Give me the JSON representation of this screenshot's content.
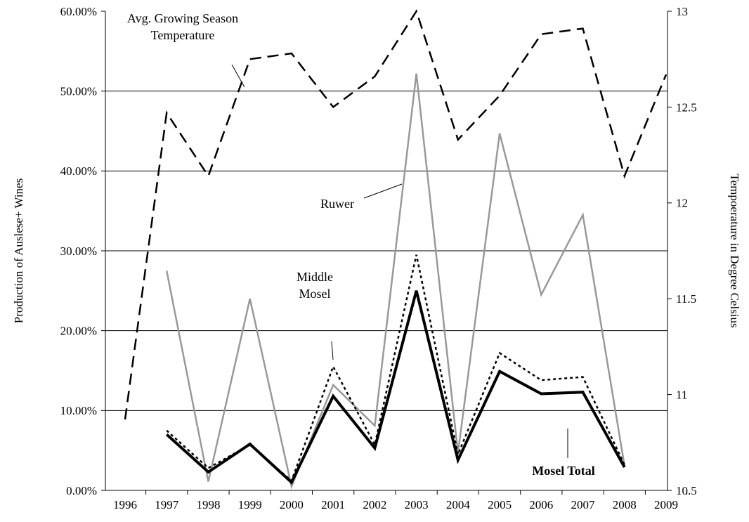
{
  "chart_data": {
    "type": "line",
    "y_label": "Production of Auslese+ Wines",
    "y2_label": "Tempoerature in Degree Celsius",
    "categories": [
      "1996",
      "1997",
      "1998",
      "1999",
      "2000",
      "2001",
      "2002",
      "2003",
      "2004",
      "2005",
      "2006",
      "2007",
      "2008",
      "2009"
    ],
    "ylim": [
      0,
      60
    ],
    "yticks": [
      {
        "value": 0,
        "label": "0.00%"
      },
      {
        "value": 10,
        "label": "10.00%"
      },
      {
        "value": 20,
        "label": "20.00%"
      },
      {
        "value": 30,
        "label": "30.00%"
      },
      {
        "value": 40,
        "label": "40.00%"
      },
      {
        "value": 50,
        "label": "50.00%"
      },
      {
        "value": 60,
        "label": "60.00%"
      }
    ],
    "y2lim": [
      10.5,
      13
    ],
    "y2ticks": [
      10.5,
      11,
      11.5,
      12,
      12.5,
      13
    ],
    "grid": true,
    "series": [
      {
        "name": "Avg. Growing Season Temperature",
        "color": "#000000",
        "line_style": "dashed",
        "line_width": 2.5,
        "axis": "y2",
        "values": [
          10.87,
          12.47,
          12.14,
          12.75,
          12.78,
          12.5,
          12.66,
          13.0,
          12.33,
          12.56,
          12.88,
          12.91,
          12.14,
          12.67
        ]
      },
      {
        "name": "Ruwer",
        "color": "#999999",
        "line_style": "solid",
        "line_width": 2.5,
        "values": [
          null,
          27.5,
          1.1,
          24.0,
          0.5,
          13.2,
          8.1,
          52.2,
          4.7,
          44.7,
          24.5,
          34.5,
          3.1,
          null
        ]
      },
      {
        "name": "Middle Mosel",
        "color": "#000000",
        "line_style": "dotted",
        "line_width": 2.5,
        "values": [
          null,
          7.5,
          2.8,
          5.7,
          1.2,
          15.5,
          5.7,
          29.5,
          4.5,
          17.2,
          13.8,
          14.2,
          3.2,
          null
        ]
      },
      {
        "name": "Mosel Total",
        "color": "#000000",
        "line_style": "solid",
        "line_width": 4,
        "values": [
          null,
          7.0,
          2.3,
          5.8,
          1.0,
          11.8,
          5.3,
          25.0,
          3.8,
          14.9,
          12.1,
          12.3,
          2.9,
          null
        ]
      }
    ]
  }
}
